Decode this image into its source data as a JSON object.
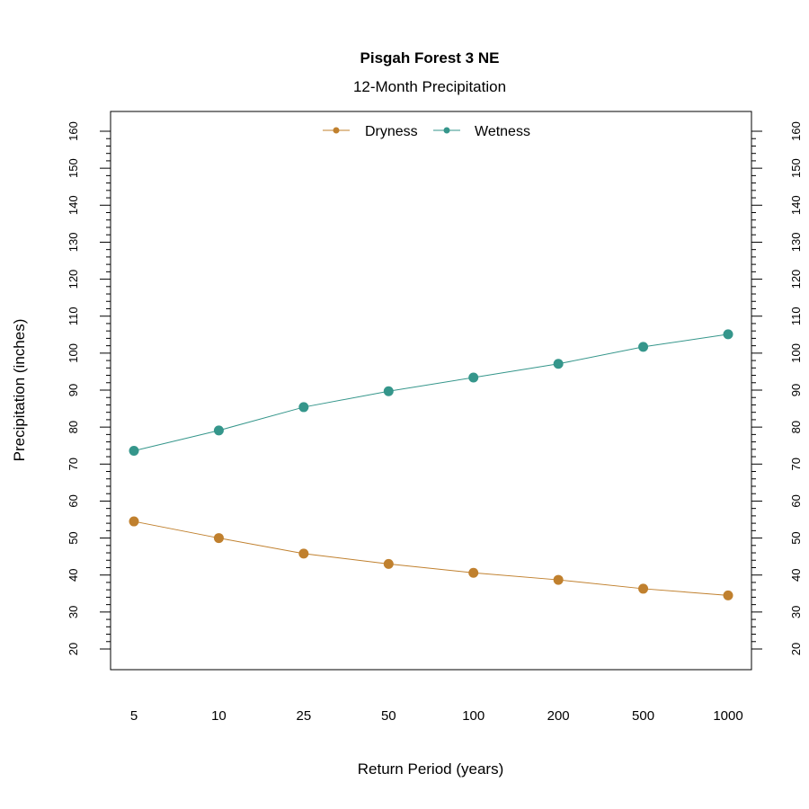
{
  "chart_data": {
    "type": "line",
    "title": "Pisgah Forest 3 NE",
    "subtitle": "12-Month Precipitation",
    "xlabel": "Return Period (years)",
    "ylabel": "Precipitation (inches)",
    "categories": [
      "5",
      "10",
      "25",
      "50",
      "100",
      "200",
      "500",
      "1000"
    ],
    "ylim": [
      20,
      160
    ],
    "yticks": [
      20,
      30,
      40,
      50,
      60,
      70,
      80,
      90,
      100,
      110,
      120,
      130,
      140,
      150,
      160
    ],
    "legend_position": "top",
    "series": [
      {
        "name": "Dryness",
        "color": "#c0802e",
        "values": [
          54.5,
          50.0,
          45.8,
          43.0,
          40.6,
          38.7,
          36.3,
          34.5
        ]
      },
      {
        "name": "Wetness",
        "color": "#35968b",
        "values": [
          73.6,
          79.1,
          85.4,
          89.7,
          93.4,
          97.1,
          101.7,
          105.1
        ]
      }
    ]
  }
}
